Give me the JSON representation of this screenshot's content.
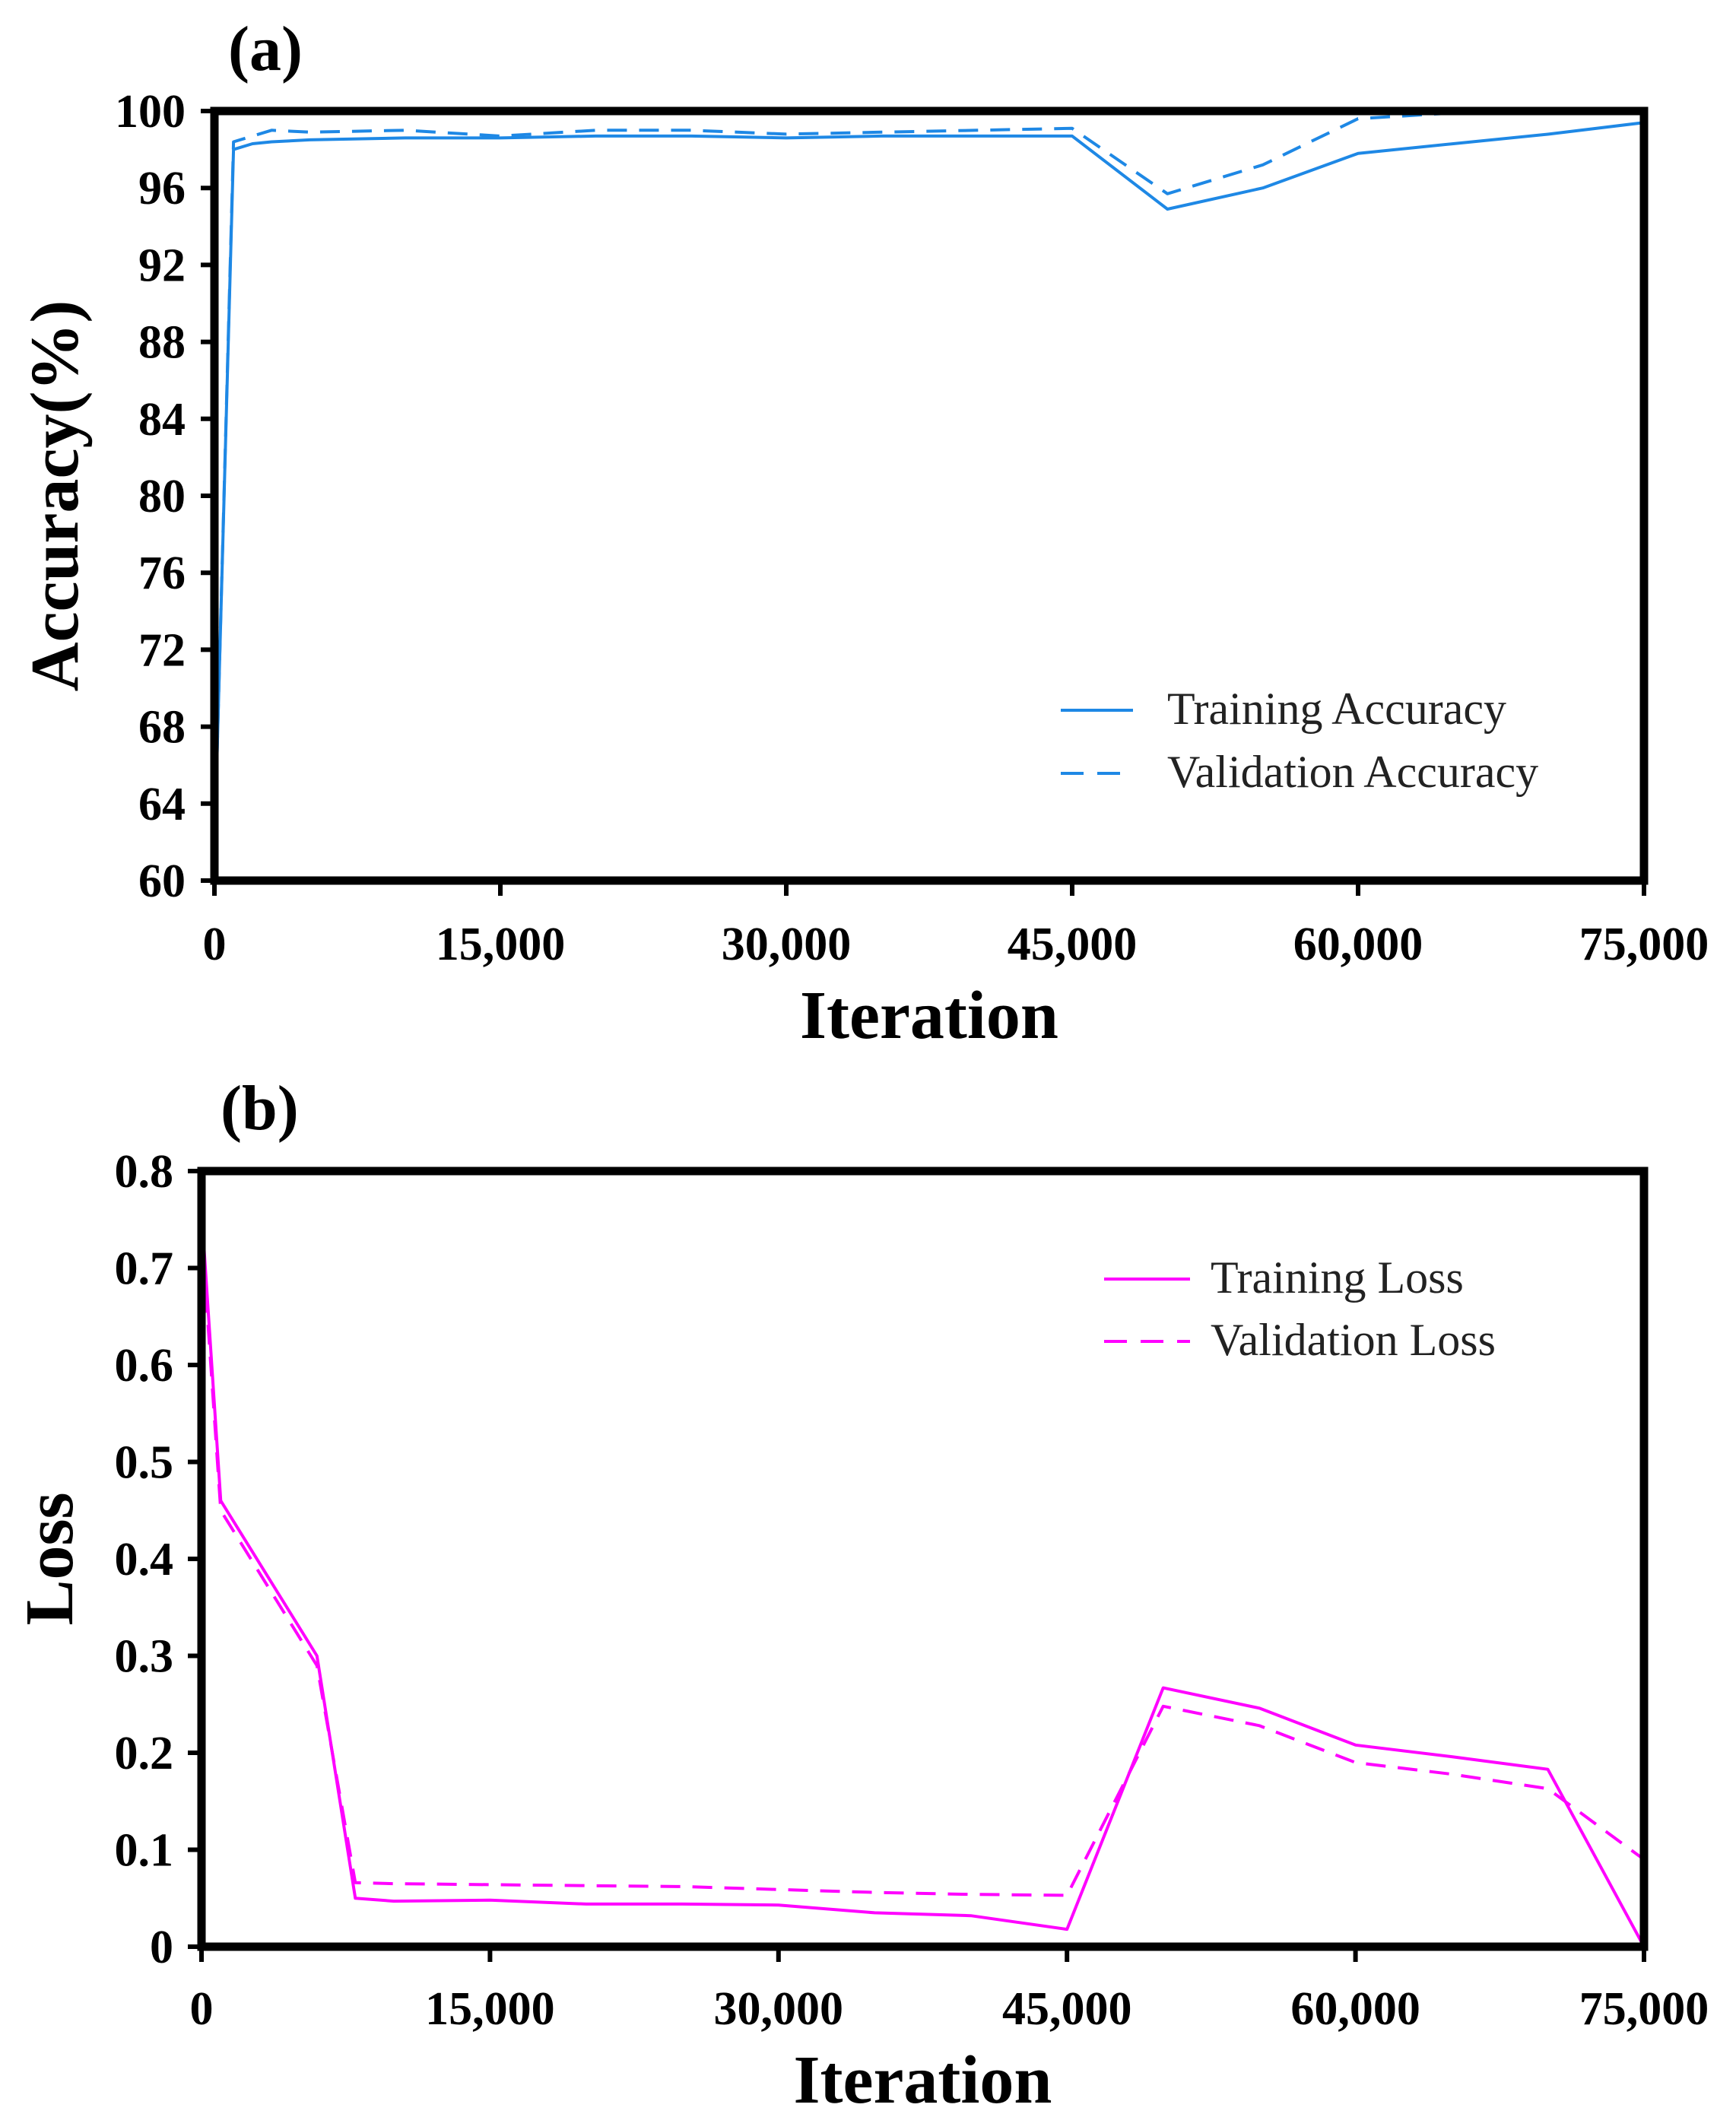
{
  "chart_data": [
    {
      "type": "line",
      "panel_label": "(a)",
      "title": "",
      "xlabel": "Iteration",
      "ylabel": "Accuracy(%)",
      "xlim": [
        0,
        75000
      ],
      "ylim": [
        60,
        100
      ],
      "xticks": [
        0,
        15000,
        30000,
        45000,
        60000,
        75000
      ],
      "xtick_labels": [
        "0",
        "15,000",
        "30,000",
        "45,000",
        "60,000",
        "75,000"
      ],
      "yticks": [
        60,
        64,
        68,
        72,
        76,
        80,
        84,
        88,
        92,
        96,
        100
      ],
      "ytick_labels": [
        "60",
        "64",
        "68",
        "72",
        "76",
        "80",
        "84",
        "88",
        "92",
        "96",
        "100"
      ],
      "legend_position": "lower-right",
      "grid": false,
      "series": [
        {
          "name": "Training Accuracy",
          "color": "#1e88e5",
          "dash": "solid",
          "x": [
            0,
            1000,
            2000,
            3000,
            5000,
            10000,
            15000,
            20000,
            25000,
            30000,
            35000,
            40000,
            45000,
            50000,
            55000,
            60000,
            65000,
            70000,
            75000
          ],
          "y": [
            61.5,
            98.0,
            98.3,
            98.4,
            98.5,
            98.6,
            98.6,
            98.7,
            98.7,
            98.6,
            98.7,
            98.7,
            98.7,
            94.9,
            96.0,
            97.8,
            98.3,
            98.8,
            99.4
          ]
        },
        {
          "name": "Validation Accuracy",
          "color": "#1e88e5",
          "dash": "dashed",
          "x": [
            0,
            1000,
            3000,
            5000,
            10000,
            15000,
            20000,
            25000,
            30000,
            35000,
            40000,
            45000,
            50000,
            55000,
            60000,
            65000,
            70000,
            75000
          ],
          "y": [
            61.5,
            98.4,
            99.0,
            98.9,
            99.0,
            98.7,
            99.0,
            99.0,
            98.8,
            98.9,
            99.0,
            99.1,
            95.7,
            97.2,
            99.6,
            99.9,
            100.0,
            100.0
          ]
        }
      ]
    },
    {
      "type": "line",
      "panel_label": "(b)",
      "title": "",
      "xlabel": "Iteration",
      "ylabel": "Loss",
      "xlim": [
        0,
        75000
      ],
      "ylim": [
        0,
        0.8
      ],
      "xticks": [
        0,
        15000,
        30000,
        45000,
        60000,
        75000
      ],
      "xtick_labels": [
        "0",
        "15,000",
        "30,000",
        "45,000",
        "60,000",
        "75,000"
      ],
      "yticks": [
        0,
        0.1,
        0.2,
        0.3,
        0.4,
        0.5,
        0.6,
        0.7,
        0.8
      ],
      "ytick_labels": [
        "0",
        "0.1",
        "0.2",
        "0.3",
        "0.4",
        "0.5",
        "0.6",
        "0.7",
        "0.8"
      ],
      "legend_position": "upper-right",
      "grid": false,
      "series": [
        {
          "name": "Training Loss",
          "color": "#ff00ff",
          "dash": "solid",
          "x": [
            0,
            1000,
            6000,
            8000,
            10000,
            15000,
            20000,
            25000,
            30000,
            35000,
            40000,
            45000,
            50000,
            55000,
            60000,
            65000,
            70000,
            75000
          ],
          "y": [
            0.76,
            0.46,
            0.3,
            0.05,
            0.047,
            0.048,
            0.044,
            0.044,
            0.043,
            0.035,
            0.032,
            0.018,
            0.267,
            0.246,
            0.208,
            0.196,
            0.183,
            0.0
          ]
        },
        {
          "name": "Validation Loss",
          "color": "#ff00ff",
          "dash": "dashed",
          "x": [
            0,
            1000,
            6000,
            8000,
            10000,
            15000,
            20000,
            25000,
            30000,
            35000,
            40000,
            45000,
            50000,
            55000,
            60000,
            65000,
            70000,
            75000
          ],
          "y": [
            0.74,
            0.45,
            0.29,
            0.066,
            0.065,
            0.064,
            0.063,
            0.062,
            0.059,
            0.056,
            0.054,
            0.053,
            0.248,
            0.228,
            0.19,
            0.178,
            0.163,
            0.09
          ]
        }
      ]
    }
  ]
}
